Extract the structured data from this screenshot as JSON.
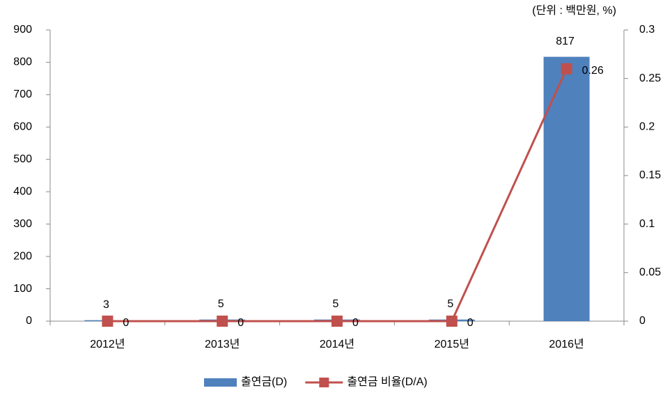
{
  "chart_data": {
    "type": "bar",
    "annotation": "(단위 : 백만원, %)",
    "categories": [
      "2012년",
      "2013년",
      "2014년",
      "2015년",
      "2016년"
    ],
    "series": [
      {
        "name": "출연금(D)",
        "color": "#4f81bd",
        "type": "bar",
        "values": [
          3,
          5,
          5,
          5,
          817
        ]
      },
      {
        "name": "출연금 비율(D/A)",
        "color": "#c0504d",
        "type": "line",
        "axis": "y2",
        "values": [
          0,
          0,
          0,
          0,
          0.26
        ]
      }
    ],
    "ylim": [
      0,
      900
    ],
    "yticks": [
      0,
      100,
      200,
      300,
      400,
      500,
      600,
      700,
      800,
      900
    ],
    "y2lim": [
      0,
      0.3
    ],
    "y2ticks": [
      0,
      0.05,
      0.1,
      0.15,
      0.2,
      0.25,
      0.3
    ],
    "legend": "bottom"
  }
}
